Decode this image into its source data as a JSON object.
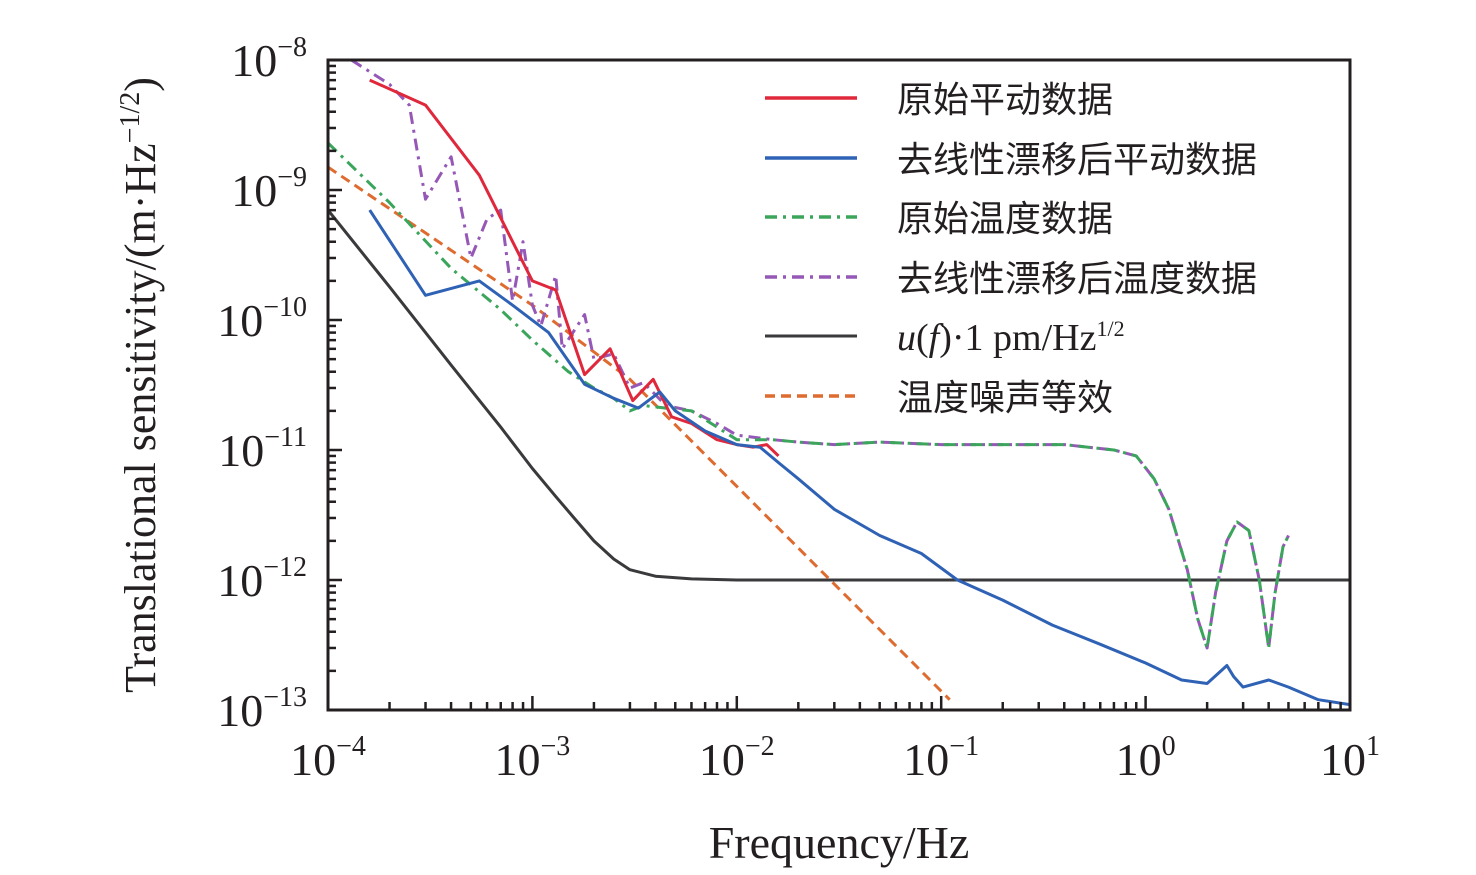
{
  "chart_data": {
    "type": "line",
    "title": "",
    "xlabel": "Frequency/Hz",
    "ylabel": "Translational sensitivity/(m·Hz",
    "ylabel_sup": "−1/2",
    "ylabel_close": ")",
    "xscale": "log",
    "yscale": "log",
    "xlim": [
      0.0001,
      10
    ],
    "ylim": [
      1e-13,
      1e-08
    ],
    "grid": false,
    "legend_position": "top-right",
    "x_ticks": [
      {
        "base": "10",
        "exp": "−4",
        "value": 0.0001
      },
      {
        "base": "10",
        "exp": "−3",
        "value": 0.001
      },
      {
        "base": "10",
        "exp": "−2",
        "value": 0.01
      },
      {
        "base": "10",
        "exp": "−1",
        "value": 0.1
      },
      {
        "base": "10",
        "exp": "0",
        "value": 1
      },
      {
        "base": "10",
        "exp": "1",
        "value": 10
      }
    ],
    "y_ticks": [
      {
        "base": "10",
        "exp": "−8",
        "value": 1e-08
      },
      {
        "base": "10",
        "exp": "−9",
        "value": 1e-09
      },
      {
        "base": "10",
        "exp": "−10",
        "value": 1e-10
      },
      {
        "base": "10",
        "exp": "−11",
        "value": 1e-11
      },
      {
        "base": "10",
        "exp": "−12",
        "value": 1e-12
      },
      {
        "base": "10",
        "exp": "−13",
        "value": 1e-13
      }
    ],
    "series": [
      {
        "name": "原始平动数据",
        "color": "#e0283c",
        "style": "solid",
        "x": [
          0.00016,
          0.0003,
          0.00055,
          0.0008,
          0.001,
          0.0013,
          0.0018,
          0.0024,
          0.0031,
          0.0039,
          0.0048,
          0.006,
          0.008,
          0.01,
          0.012,
          0.014,
          0.016
        ],
        "y": [
          7e-09,
          4.5e-09,
          1.3e-09,
          4e-10,
          2e-10,
          1.7e-10,
          3.8e-11,
          6e-11,
          2.4e-11,
          3.5e-11,
          1.8e-11,
          1.6e-11,
          1.2e-11,
          1.1e-11,
          1.05e-11,
          1.1e-11,
          9e-12
        ]
      },
      {
        "name": "去线性漂移后平动数据",
        "color": "#2f62b5",
        "style": "solid",
        "x": [
          0.00016,
          0.0003,
          0.00055,
          0.0008,
          0.0012,
          0.0018,
          0.0025,
          0.0033,
          0.0042,
          0.005,
          0.007,
          0.01,
          0.013,
          0.016,
          0.02,
          0.03,
          0.05,
          0.08,
          0.12,
          0.2,
          0.35,
          0.6,
          1.0,
          1.5,
          2.0,
          2.5,
          2.7,
          3.0,
          4.0,
          5.0,
          7.0,
          10.0
        ],
        "y": [
          7e-10,
          1.55e-10,
          2e-10,
          1.3e-10,
          8e-11,
          3.2e-11,
          2.5e-11,
          2.1e-11,
          2.8e-11,
          2e-11,
          1.4e-11,
          1.1e-11,
          1.05e-11,
          8e-12,
          6e-12,
          3.5e-12,
          2.2e-12,
          1.6e-12,
          1e-12,
          7e-13,
          4.5e-13,
          3.2e-13,
          2.3e-13,
          1.7e-13,
          1.6e-13,
          2.2e-13,
          1.8e-13,
          1.5e-13,
          1.7e-13,
          1.5e-13,
          1.2e-13,
          1.1e-13
        ]
      },
      {
        "name": "原始温度数据",
        "color": "#3ba55c",
        "style": "dashdot",
        "x": [
          0.0001,
          0.0002,
          0.0004,
          0.0007,
          0.001,
          0.0015,
          0.002,
          0.0025,
          0.003,
          0.0035,
          0.0045,
          0.006,
          0.008,
          0.01,
          0.015,
          0.02,
          0.03,
          0.05,
          0.1,
          0.2,
          0.4,
          0.7,
          0.9,
          1.1,
          1.3,
          1.6,
          1.8,
          2.0,
          2.2,
          2.5,
          2.8,
          3.2,
          3.6,
          4.0,
          4.3,
          4.7,
          5.0
        ],
        "y": [
          2.3e-09,
          8e-10,
          2.5e-10,
          1.2e-10,
          7e-11,
          4e-11,
          3e-11,
          2.5e-11,
          2e-11,
          2.2e-11,
          2.1e-11,
          2e-11,
          1.5e-11,
          1.2e-11,
          1.2e-11,
          1.15e-11,
          1.1e-11,
          1.15e-11,
          1.1e-11,
          1.1e-11,
          1.1e-11,
          1e-11,
          9e-12,
          6e-12,
          3.5e-12,
          1.2e-12,
          5e-13,
          3e-13,
          8e-13,
          2e-12,
          2.8e-12,
          2.4e-12,
          1e-12,
          3e-13,
          8e-13,
          1.8e-12,
          2.2e-12
        ]
      },
      {
        "name": "去线性漂移后温度数据",
        "color": "#9558b6",
        "style": "dashdot",
        "x": [
          0.00013,
          0.0002,
          0.00025,
          0.0003,
          0.0004,
          0.0005,
          0.0006,
          0.0007,
          0.0008,
          0.0009,
          0.001,
          0.0011,
          0.0013,
          0.0014,
          0.0018,
          0.002,
          0.0025,
          0.003,
          0.0035,
          0.0045,
          0.006,
          0.008,
          0.01,
          0.015,
          0.02,
          0.03,
          0.05,
          0.1,
          0.2,
          0.4,
          0.7,
          0.9,
          1.1,
          1.3,
          1.6,
          1.8,
          2.0,
          2.2,
          2.5,
          2.8,
          3.2,
          3.6,
          4.0,
          4.3,
          4.7,
          5.0
        ],
        "y": [
          1e-08,
          6.5e-09,
          4.5e-09,
          8.5e-10,
          1.8e-09,
          3e-10,
          6e-10,
          7e-10,
          1.4e-10,
          4e-10,
          1.3e-10,
          9e-11,
          2.2e-10,
          6e-11,
          1.1e-10,
          5e-11,
          5.5e-11,
          3e-11,
          3.3e-11,
          2.2e-11,
          2e-11,
          1.6e-11,
          1.3e-11,
          1.2e-11,
          1.15e-11,
          1.1e-11,
          1.15e-11,
          1.1e-11,
          1.1e-11,
          1.1e-11,
          1e-11,
          9e-12,
          6e-12,
          3.5e-12,
          1.2e-12,
          5e-13,
          3e-13,
          8e-13,
          2e-12,
          2.8e-12,
          2.4e-12,
          1e-12,
          3e-13,
          8e-13,
          1.8e-12,
          2.2e-12
        ]
      },
      {
        "name": "u(f)·1 pm/Hz^1/2",
        "label_parts": {
          "italic_u": "u",
          "open": "(",
          "italic_f": "f",
          "rest": ")·1 pm/Hz",
          "sup": "1/2"
        },
        "color": "#3a3a3c",
        "style": "solid",
        "x": [
          0.0001,
          0.0002,
          0.0004,
          0.0007,
          0.001,
          0.0013,
          0.0016,
          0.002,
          0.0025,
          0.003,
          0.004,
          0.006,
          0.01,
          0.03,
          0.1,
          1,
          10
        ],
        "y": [
          7e-10,
          1.8e-10,
          4.5e-11,
          1.5e-11,
          7.2e-12,
          4.4e-12,
          3e-12,
          2e-12,
          1.45e-12,
          1.2e-12,
          1.07e-12,
          1.02e-12,
          1e-12,
          1e-12,
          1e-12,
          1e-12,
          1e-12
        ]
      },
      {
        "name": "温度噪声等效",
        "color": "#de6b2f",
        "style": "dashed",
        "x": [
          0.0001,
          0.001,
          0.003,
          0.11
        ],
        "y": [
          1.5e-09,
          1.3e-10,
          3.5e-11,
          1.2e-13
        ]
      }
    ]
  }
}
